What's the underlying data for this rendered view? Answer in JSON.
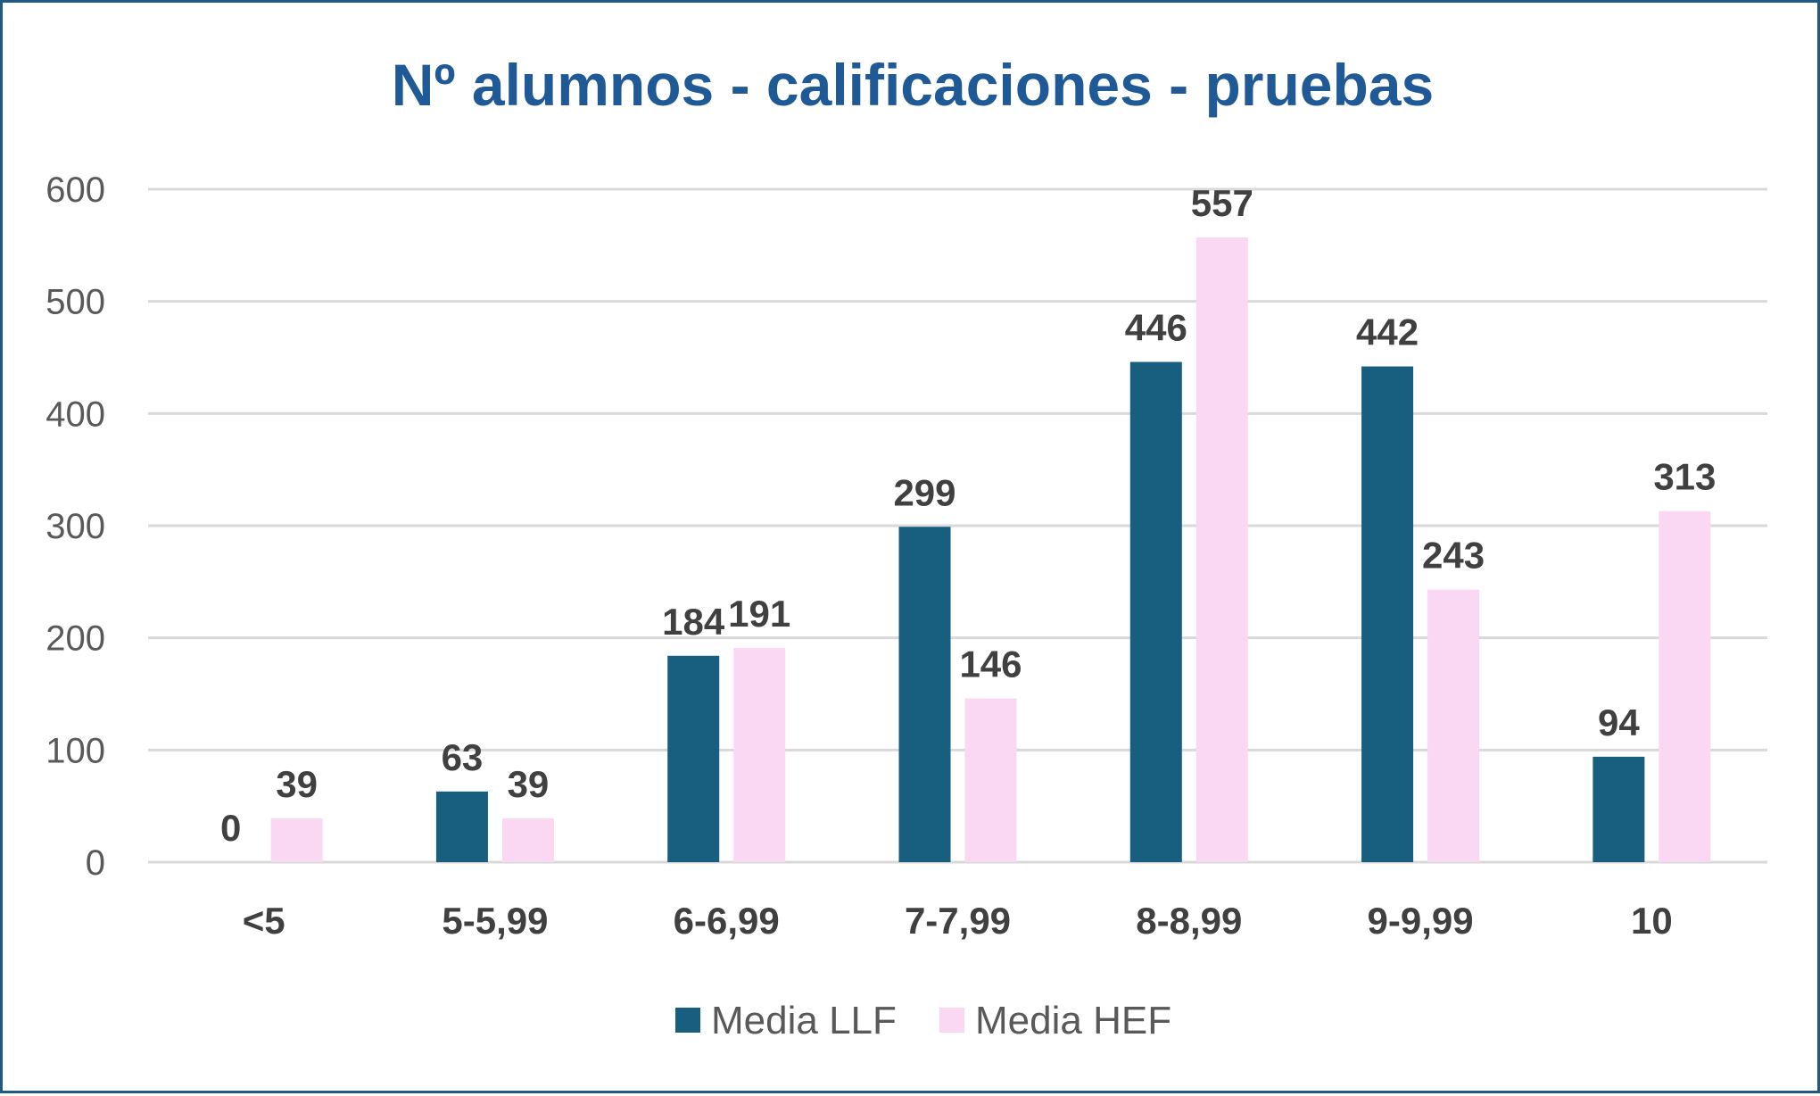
{
  "chart_data": {
    "type": "bar",
    "title": "Nº alumnos - calificaciones - pruebas",
    "categories": [
      "<5",
      "5-5,99",
      "6-6,99",
      "7-7,99",
      "8-8,99",
      "9-9,99",
      "10"
    ],
    "series": [
      {
        "name": "Media LLF",
        "color": "#175e7f",
        "values": [
          0,
          63,
          184,
          299,
          446,
          442,
          94
        ]
      },
      {
        "name": "Media HEF",
        "color": "#fad7f3",
        "values": [
          39,
          39,
          191,
          146,
          557,
          243,
          313
        ]
      }
    ],
    "ylim": [
      0,
      600
    ],
    "yticks": [
      0,
      100,
      200,
      300,
      400,
      500,
      600
    ],
    "grid": true,
    "legend": "bottom",
    "xlabel": "",
    "ylabel": ""
  }
}
